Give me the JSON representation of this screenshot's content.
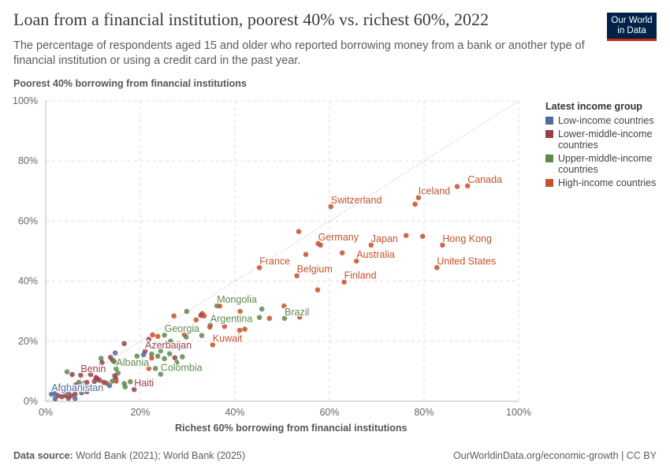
{
  "header": {
    "title": "Loan from a financial institution, poorest 40% vs. richest 60%, 2022",
    "subtitle": "The percentage of respondents aged 15 and older who reported borrowing money from a bank or another type of financial institution or using a credit card in the past year.",
    "logo": "Our World in Data"
  },
  "footer": {
    "source_label": "Data source:",
    "source": "World Bank (2021); World Bank (2025)",
    "right": "OurWorldinData.org/economic-growth | CC BY"
  },
  "legend": {
    "title": "Latest income group",
    "items": [
      {
        "key": "low",
        "label": "Low-income countries"
      },
      {
        "key": "lmi",
        "label": "Lower-middle-income countries"
      },
      {
        "key": "umi",
        "label": "Upper-middle-income countries"
      },
      {
        "key": "high",
        "label": "High-income countries"
      }
    ]
  },
  "colors": {
    "low": "#4C6A9C",
    "lmi": "#9A3F4A",
    "umi": "#5E8A4F",
    "high": "#C4522D"
  },
  "chart_data": {
    "type": "scatter",
    "xlabel": "Richest 60% borrowing from financial institutions",
    "ylabel": "Poorest 40% borrowing from financial institutions",
    "xlim": [
      0,
      100
    ],
    "ylim": [
      0,
      100
    ],
    "xticks": [
      "0%",
      "20%",
      "40%",
      "60%",
      "80%",
      "100%"
    ],
    "yticks": [
      "0%",
      "20%",
      "40%",
      "60%",
      "80%",
      "100%"
    ],
    "grid": true,
    "diagonal_reference_line": true,
    "legend_position": "right",
    "points": [
      [
        89.2,
        71.7,
        "high",
        "Canada"
      ],
      [
        87.0,
        71.5,
        "high",
        ""
      ],
      [
        78.8,
        67.8,
        "high",
        "Iceland"
      ],
      [
        78.1,
        65.6,
        "high",
        ""
      ],
      [
        60.3,
        64.8,
        "high",
        "Switzerland"
      ],
      [
        53.5,
        56.5,
        "high",
        ""
      ],
      [
        57.6,
        52.5,
        "high",
        "Germany"
      ],
      [
        58.1,
        52.0,
        "high",
        ""
      ],
      [
        68.8,
        52.0,
        "high",
        "Japan"
      ],
      [
        76.2,
        55.2,
        "high",
        ""
      ],
      [
        79.7,
        54.9,
        "high",
        ""
      ],
      [
        83.9,
        52.0,
        "high",
        "Hong Kong"
      ],
      [
        55.0,
        48.9,
        "high",
        ""
      ],
      [
        62.7,
        49.4,
        "high",
        ""
      ],
      [
        65.7,
        46.7,
        "high",
        "Australia"
      ],
      [
        82.7,
        44.5,
        "high",
        "United States"
      ],
      [
        45.2,
        44.5,
        "high",
        "France"
      ],
      [
        53.1,
        41.8,
        "high",
        "Belgium"
      ],
      [
        63.1,
        39.7,
        "high",
        "Finland"
      ],
      [
        57.5,
        37.1,
        "high",
        ""
      ],
      [
        50.4,
        31.7,
        "high",
        ""
      ],
      [
        50.5,
        27.6,
        "umi",
        "Brazil"
      ],
      [
        53.7,
        28.0,
        "high",
        ""
      ],
      [
        47.3,
        27.6,
        "high",
        ""
      ],
      [
        45.2,
        27.9,
        "umi",
        ""
      ],
      [
        45.7,
        30.7,
        "umi",
        ""
      ],
      [
        36.2,
        31.8,
        "umi",
        "Mongolia"
      ],
      [
        36.8,
        31.7,
        "high",
        ""
      ],
      [
        29.8,
        29.9,
        "umi",
        ""
      ],
      [
        27.1,
        28.4,
        "high",
        ""
      ],
      [
        33.1,
        29.2,
        "high",
        ""
      ],
      [
        32.8,
        28.6,
        "lmi",
        ""
      ],
      [
        33.5,
        28.4,
        "high",
        ""
      ],
      [
        31.8,
        27.1,
        "high",
        ""
      ],
      [
        41.1,
        29.9,
        "high",
        ""
      ],
      [
        34.8,
        25.3,
        "umi",
        "Argentina"
      ],
      [
        34.7,
        24.7,
        "high",
        ""
      ],
      [
        37.8,
        24.9,
        "high",
        ""
      ],
      [
        41.0,
        23.6,
        "high",
        ""
      ],
      [
        42.1,
        24.0,
        "high",
        ""
      ],
      [
        35.3,
        18.8,
        "high",
        "Kuwait"
      ],
      [
        33.0,
        21.9,
        "umi",
        ""
      ],
      [
        29.3,
        22.2,
        "high",
        ""
      ],
      [
        29.7,
        21.4,
        "umi",
        ""
      ],
      [
        25.1,
        22.0,
        "umi",
        "Georgia"
      ],
      [
        22.6,
        22.1,
        "high",
        ""
      ],
      [
        23.7,
        21.6,
        "high",
        ""
      ],
      [
        21.8,
        20.6,
        "lmi",
        ""
      ],
      [
        26.4,
        20.0,
        "umi",
        ""
      ],
      [
        21.0,
        16.6,
        "lmi",
        "Azerbaijan"
      ],
      [
        20.7,
        15.5,
        "low",
        ""
      ],
      [
        22.4,
        15.7,
        "umi",
        ""
      ],
      [
        22.4,
        14.4,
        "high",
        ""
      ],
      [
        19.3,
        15.0,
        "umi",
        ""
      ],
      [
        23.7,
        15.0,
        "umi",
        ""
      ],
      [
        24.3,
        16.8,
        "umi",
        ""
      ],
      [
        25.1,
        14.2,
        "umi",
        ""
      ],
      [
        26.2,
        15.8,
        "umi",
        ""
      ],
      [
        27.3,
        14.5,
        "lmi",
        ""
      ],
      [
        28.9,
        14.8,
        "umi",
        ""
      ],
      [
        27.7,
        12.9,
        "umi",
        ""
      ],
      [
        23.2,
        10.9,
        "umi",
        ""
      ],
      [
        21.8,
        10.9,
        "high",
        ""
      ],
      [
        24.3,
        9.0,
        "umi",
        "Colombia"
      ],
      [
        16.6,
        19.2,
        "lmi",
        ""
      ],
      [
        14.7,
        16.1,
        "low",
        ""
      ],
      [
        11.7,
        14.3,
        "umi",
        ""
      ],
      [
        13.7,
        14.6,
        "lmi",
        ""
      ],
      [
        14.2,
        13.6,
        "lmi",
        ""
      ],
      [
        14.5,
        13.2,
        "umi",
        ""
      ],
      [
        11.9,
        12.9,
        "lmi",
        ""
      ],
      [
        14.9,
        10.8,
        "umi",
        "Albania"
      ],
      [
        15.3,
        9.4,
        "umi",
        ""
      ],
      [
        4.5,
        9.8,
        "umi",
        ""
      ],
      [
        5.6,
        8.9,
        "lmi",
        ""
      ],
      [
        7.4,
        8.7,
        "lmi",
        "Benin"
      ],
      [
        9.5,
        8.9,
        "lmi",
        ""
      ],
      [
        10.6,
        7.9,
        "lmi",
        ""
      ],
      [
        10.9,
        7.5,
        "lmi",
        ""
      ],
      [
        11.4,
        7.0,
        "lmi",
        ""
      ],
      [
        10.3,
        6.6,
        "lmi",
        ""
      ],
      [
        14.6,
        8.5,
        "lmi",
        ""
      ],
      [
        14.8,
        7.6,
        "lmi",
        ""
      ],
      [
        14.9,
        6.7,
        "high",
        ""
      ],
      [
        12.9,
        6.0,
        "high",
        ""
      ],
      [
        12.3,
        6.3,
        "lmi",
        ""
      ],
      [
        14.1,
        6.7,
        "umi",
        ""
      ],
      [
        16.6,
        5.9,
        "umi",
        ""
      ],
      [
        16.8,
        4.8,
        "umi",
        ""
      ],
      [
        17.9,
        6.5,
        "umi",
        ""
      ],
      [
        18.7,
        3.9,
        "lmi",
        "Haiti"
      ],
      [
        13.5,
        5.2,
        "low",
        ""
      ],
      [
        7.0,
        6.3,
        "umi",
        ""
      ],
      [
        8.1,
        5.9,
        "lmi",
        ""
      ],
      [
        6.4,
        5.4,
        "lmi",
        ""
      ],
      [
        8.7,
        6.3,
        "lmi",
        ""
      ],
      [
        1.2,
        2.4,
        "low",
        "Afghanistan"
      ],
      [
        1.9,
        2.5,
        "low",
        ""
      ],
      [
        2.0,
        0.8,
        "low",
        ""
      ],
      [
        6.2,
        0.9,
        "low",
        ""
      ],
      [
        7.6,
        2.8,
        "low",
        ""
      ],
      [
        4.8,
        3.2,
        "low",
        ""
      ],
      [
        3.4,
        1.5,
        "lmi",
        ""
      ],
      [
        4.2,
        1.9,
        "lmi",
        ""
      ],
      [
        5.3,
        1.9,
        "lmi",
        ""
      ],
      [
        6.2,
        2.4,
        "lmi",
        ""
      ],
      [
        8.7,
        3.2,
        "lmi",
        ""
      ],
      [
        2.6,
        1.9,
        "lmi",
        ""
      ],
      [
        4.8,
        1.0,
        "lmi",
        ""
      ]
    ]
  }
}
